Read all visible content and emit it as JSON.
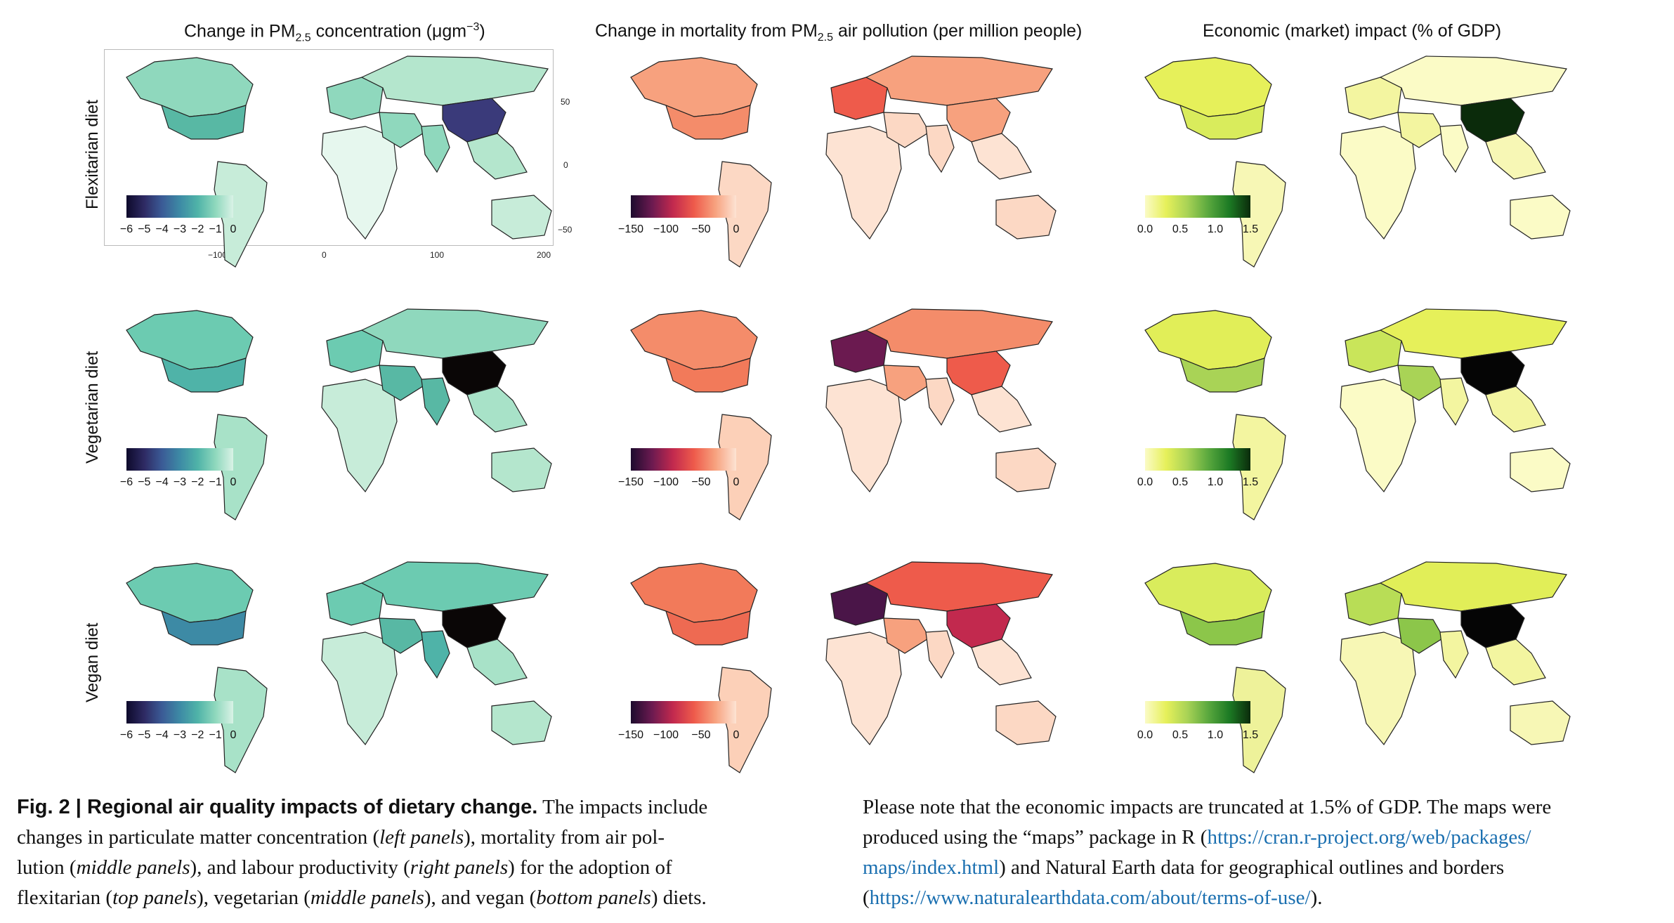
{
  "columns": [
    {
      "title_pre": "Change in PM",
      "title_sub": "2.5",
      "title_post": " concentration (μgm",
      "title_sup": "−3",
      "title_end": ")"
    },
    {
      "title_pre": "Change in mortality from PM",
      "title_sub": "2.5",
      "title_post": " air pollution (per million people)",
      "title_sup": "",
      "title_end": ""
    },
    {
      "title_pre": "Economic (market) impact (% of GDP)",
      "title_sub": "",
      "title_post": "",
      "title_sup": "",
      "title_end": ""
    }
  ],
  "rows": [
    "Flexitarian diet",
    "Vegetarian diet",
    "Vegan diet"
  ],
  "legends": {
    "pm25": {
      "ticks": [
        "−6",
        "−5",
        "−4",
        "−3",
        "−2",
        "−1",
        "0"
      ],
      "colors": [
        "#0d0a2b",
        "#2e2a63",
        "#3b5b96",
        "#3d8aa5",
        "#4fb3a8",
        "#8fd8bd",
        "#d9f2e6"
      ]
    },
    "mortality": {
      "ticks": [
        "−150",
        "−100",
        "−50",
        "0"
      ],
      "colors": [
        "#1d0b2e",
        "#6b1a50",
        "#c2294e",
        "#ee5b4b",
        "#f7a17e",
        "#fde3d3"
      ]
    },
    "economic": {
      "ticks": [
        "0.0",
        "0.5",
        "1.0",
        "1.5"
      ],
      "colors": [
        "#fbfbc6",
        "#e6f05a",
        "#a9d356",
        "#5aa83e",
        "#1c7a24",
        "#0b2b0b"
      ]
    }
  },
  "axis_ticks": {
    "x": [
      "−100",
      "0",
      "100",
      "200"
    ],
    "y": [
      "50",
      "0",
      "−50"
    ]
  },
  "region_colors": {
    "pm25": [
      {
        "na": "#8fd8bd",
        "us": "#58b8a4",
        "sa": "#c7ecd9",
        "eu": "#8fd8bd",
        "ru": "#b4e6cd",
        "af": "#e6f7ee",
        "me": "#8fd8bd",
        "in": "#8fd8bd",
        "cn": "#3a3a7a",
        "sea": "#b4e6cd",
        "au": "#c7ecd9"
      },
      {
        "na": "#6ccbb1",
        "us": "#4fb3a8",
        "sa": "#a8e2c8",
        "eu": "#6ccbb1",
        "ru": "#8fd8bd",
        "af": "#c7ecd9",
        "me": "#58b8a4",
        "in": "#58b8a4",
        "cn": "#0a0606",
        "sea": "#a8e2c8",
        "au": "#b4e6cd"
      },
      {
        "na": "#6ccbb1",
        "us": "#3d8aa5",
        "sa": "#a8e2c8",
        "eu": "#6ccbb1",
        "ru": "#6ccbb1",
        "af": "#c7ecd9",
        "me": "#58b8a4",
        "in": "#4fb3a8",
        "cn": "#0a0606",
        "sea": "#a8e2c8",
        "au": "#b4e6cd"
      }
    ],
    "mortality": [
      {
        "na": "#f7a17e",
        "us": "#f48c6a",
        "sa": "#fcd8c4",
        "eu": "#ee5b4b",
        "ru": "#f7a17e",
        "af": "#fde3d3",
        "me": "#fcd8c4",
        "in": "#fcd8c4",
        "cn": "#f7a17e",
        "sea": "#fde3d3",
        "au": "#fcd8c4"
      },
      {
        "na": "#f48c6a",
        "us": "#f27a5a",
        "sa": "#fcd0b8",
        "eu": "#6b1a50",
        "ru": "#f48c6a",
        "af": "#fde3d3",
        "me": "#f7a17e",
        "in": "#fcd8c4",
        "cn": "#ee5b4b",
        "sea": "#fde3d3",
        "au": "#fcd8c4"
      },
      {
        "na": "#f27a5a",
        "us": "#ee6a52",
        "sa": "#fcd0b8",
        "eu": "#4a1548",
        "ru": "#ee5b4b",
        "af": "#fde3d3",
        "me": "#f7a17e",
        "in": "#fcd8c4",
        "cn": "#c2294e",
        "sea": "#fde3d3",
        "au": "#fcd8c4"
      }
    ],
    "economic": [
      {
        "na": "#e6f05a",
        "us": "#d9ec5c",
        "sa": "#f7f7b5",
        "eu": "#f3f5a0",
        "ru": "#fbfbc6",
        "af": "#fbfbc6",
        "me": "#f3f5a0",
        "in": "#fbfbc6",
        "cn": "#0b2b0b",
        "sea": "#f7f7b5",
        "au": "#fbfbc6"
      },
      {
        "na": "#e1ee58",
        "us": "#a9d356",
        "sa": "#f3f5a0",
        "eu": "#c9e55a",
        "ru": "#e6f05a",
        "af": "#fbfbc6",
        "me": "#a9d356",
        "in": "#f3f5a0",
        "cn": "#050505",
        "sea": "#f3f5a0",
        "au": "#fbfbc6"
      },
      {
        "na": "#d9ec5c",
        "us": "#8cc64a",
        "sa": "#eef29a",
        "eu": "#b8dd56",
        "ru": "#e1ee58",
        "af": "#f7f7b5",
        "me": "#8cc64a",
        "in": "#f3f5a0",
        "cn": "#050505",
        "sea": "#f3f5a0",
        "au": "#f7f7b5"
      }
    ]
  },
  "caption_left": {
    "fig": "Fig. 2 | Regional air quality impacts of dietary change.",
    "l1": " The impacts include",
    "l2a": "changes in particulate matter concentration (",
    "l2b": "left panels",
    "l2c": "), mortality from air pol-",
    "l3a": "lution (",
    "l3b": "middle panels",
    "l3c": "), and labour productivity (",
    "l3d": "right panels",
    "l3e": ") for the adoption of",
    "l4a": "flexitarian (",
    "l4b": "top panels",
    "l4c": "), vegetarian (",
    "l4d": "middle panels",
    "l4e": "), and vegan (",
    "l4f": "bottom panels",
    "l4g": ") diets."
  },
  "caption_right": {
    "l1": "Please note that the economic impacts are truncated at 1.5% of GDP. The maps were",
    "l2a": "produced using the “maps” package in R (",
    "l2b": "https://cran.r-project.org/web/packages/",
    "l3a": "maps/index.html",
    "l3b": ") and Natural Earth data for geographical outlines and borders",
    "l4a": "(",
    "l4b": "https://www.naturalearthdata.com/about/terms-of-use/",
    "l4c": ")."
  }
}
